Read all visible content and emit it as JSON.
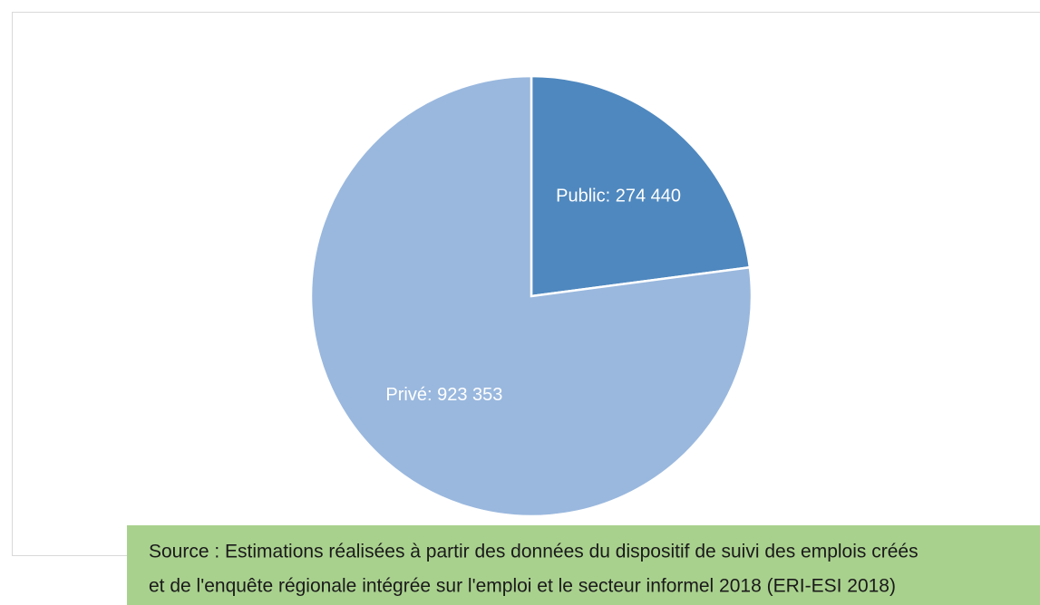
{
  "chart_data": {
    "type": "pie",
    "values": [
      274440,
      923353
    ],
    "value_labels": [
      "Public: 274 440",
      "Privé: 923 353"
    ],
    "colors": [
      "#4f88bf",
      "#9ab8de"
    ],
    "source": [
      "Source : Estimations réalisées à partir des données du dispositif de suivi des emplois créés",
      "et de l'enquête régionale intégrée sur l'emploi et le secteur informel 2018 (ERI-ESI 2018)"
    ]
  }
}
